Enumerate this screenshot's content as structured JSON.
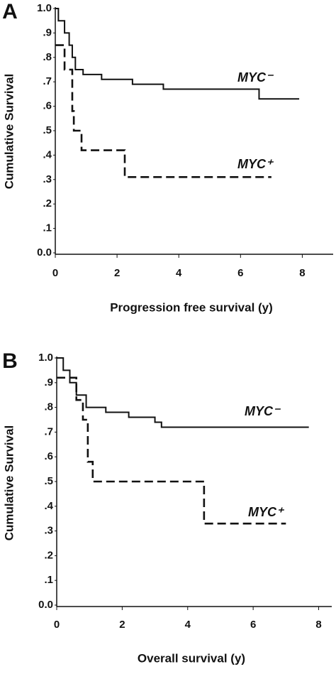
{
  "chart_data": [
    {
      "type": "line",
      "panel": "A",
      "x_label": "Progression free survival (y)",
      "y_label": "Cumulative Survival",
      "xlim": [
        0,
        9
      ],
      "ylim": [
        0,
        1
      ],
      "xticks": [
        0,
        2,
        4,
        6,
        8
      ],
      "yticks": [
        {
          "value": 0,
          "label": "0.0"
        },
        {
          "value": 0.1,
          "label": ".1"
        },
        {
          "value": 0.2,
          "label": ".2"
        },
        {
          "value": 0.3,
          "label": ".3"
        },
        {
          "value": 0.4,
          "label": ".4"
        },
        {
          "value": 0.5,
          "label": ".5"
        },
        {
          "value": 0.6,
          "label": ".6"
        },
        {
          "value": 0.7,
          "label": ".7"
        },
        {
          "value": 0.8,
          "label": ".8"
        },
        {
          "value": 0.9,
          "label": ".9"
        },
        {
          "value": 1,
          "label": "1.0"
        }
      ],
      "series": [
        {
          "name": "MYC⁻",
          "color": "#111111",
          "dash": false,
          "x": [
            0,
            0.1,
            0.1,
            0.3,
            0.3,
            0.45,
            0.45,
            0.55,
            0.55,
            0.65,
            0.65,
            0.9,
            0.9,
            1.5,
            1.5,
            2.5,
            2.5,
            3.5,
            3.5,
            6.6,
            6.6,
            7.9
          ],
          "values": [
            1,
            1,
            0.95,
            0.95,
            0.9,
            0.9,
            0.85,
            0.85,
            0.8,
            0.8,
            0.75,
            0.75,
            0.73,
            0.73,
            0.71,
            0.71,
            0.69,
            0.69,
            0.67,
            0.67,
            0.63,
            0.63
          ]
        },
        {
          "name": "MYC⁺",
          "color": "#111111",
          "dash": true,
          "x": [
            0,
            0.3,
            0.3,
            0.55,
            0.55,
            0.6,
            0.6,
            0.85,
            0.85,
            2.25,
            2.25,
            7.0
          ],
          "values": [
            0.85,
            0.85,
            0.75,
            0.75,
            0.58,
            0.58,
            0.5,
            0.5,
            0.42,
            0.42,
            0.31,
            0.31
          ]
        }
      ]
    },
    {
      "type": "line",
      "panel": "B",
      "x_label": "Overall survival (y)",
      "y_label": "Cumulative Survival",
      "xlim": [
        0,
        8.4
      ],
      "ylim": [
        0,
        1
      ],
      "xticks": [
        0,
        2,
        4,
        6,
        8
      ],
      "yticks": [
        {
          "value": 0,
          "label": "0.0"
        },
        {
          "value": 0.1,
          "label": ".1"
        },
        {
          "value": 0.2,
          "label": ".2"
        },
        {
          "value": 0.3,
          "label": ".3"
        },
        {
          "value": 0.4,
          "label": ".4"
        },
        {
          "value": 0.5,
          "label": ".5"
        },
        {
          "value": 0.6,
          "label": ".6"
        },
        {
          "value": 0.7,
          "label": ".7"
        },
        {
          "value": 0.8,
          "label": ".8"
        },
        {
          "value": 0.9,
          "label": ".9"
        },
        {
          "value": 1,
          "label": "1.0"
        }
      ],
      "series": [
        {
          "name": "MYC⁻",
          "color": "#111111",
          "dash": false,
          "x": [
            0,
            0.2,
            0.2,
            0.4,
            0.4,
            0.6,
            0.6,
            0.9,
            0.9,
            1.5,
            1.5,
            2.2,
            2.2,
            3,
            3,
            3.2,
            3.2,
            7.7
          ],
          "values": [
            1,
            1,
            0.95,
            0.95,
            0.9,
            0.9,
            0.85,
            0.85,
            0.8,
            0.8,
            0.78,
            0.78,
            0.76,
            0.76,
            0.74,
            0.74,
            0.72,
            0.72
          ]
        },
        {
          "name": "MYC⁺",
          "color": "#111111",
          "dash": true,
          "x": [
            0,
            0.6,
            0.6,
            0.8,
            0.8,
            0.95,
            0.95,
            1.1,
            1.1,
            4.5,
            4.5,
            7.0
          ],
          "values": [
            0.92,
            0.92,
            0.83,
            0.83,
            0.75,
            0.75,
            0.58,
            0.58,
            0.5,
            0.5,
            0.33,
            0.33
          ]
        }
      ]
    }
  ]
}
